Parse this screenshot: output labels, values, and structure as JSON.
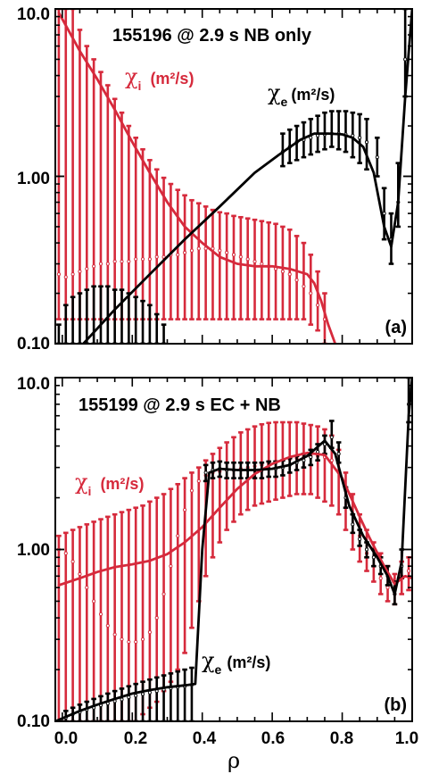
{
  "chart_data": [
    {
      "type": "line",
      "panel_label": "(a)",
      "title": "155196 @ 2.9 s NB only",
      "xlabel": "ρ",
      "xlim": [
        -0.02,
        1.0
      ],
      "ylim": [
        0.1,
        10.0
      ],
      "y_scale": "log",
      "y_ticks": [
        "0.10",
        "1.00",
        "10.0"
      ],
      "x_ticks": [
        "0.0",
        "0.2",
        "0.4",
        "0.6",
        "0.8",
        "1.0"
      ],
      "colors": {
        "chi_i": "#d62a3c",
        "chi_e": "#000000"
      },
      "series": [
        {
          "name_symbol": "χ",
          "name_sub": "i",
          "name_units": "(m²/s)",
          "color": "#d62a3c",
          "fit": {
            "x": [
              -0.01,
              0.05,
              0.1,
              0.15,
              0.2,
              0.25,
              0.3,
              0.35,
              0.4,
              0.45,
              0.5,
              0.55,
              0.6,
              0.65,
              0.7,
              0.72,
              0.74,
              0.76,
              0.78
            ],
            "y": [
              9.5,
              5.6,
              3.8,
              2.5,
              1.6,
              1.05,
              0.7,
              0.5,
              0.4,
              0.33,
              0.3,
              0.29,
              0.29,
              0.28,
              0.26,
              0.23,
              0.18,
              0.13,
              0.1
            ]
          },
          "errorbars": {
            "x": [
              -0.01,
              0.01,
              0.03,
              0.05,
              0.07,
              0.09,
              0.11,
              0.13,
              0.15,
              0.17,
              0.19,
              0.21,
              0.23,
              0.25,
              0.27,
              0.29,
              0.31,
              0.33,
              0.35,
              0.37,
              0.39,
              0.41,
              0.43,
              0.45,
              0.47,
              0.49,
              0.51,
              0.53,
              0.55,
              0.57,
              0.59,
              0.61,
              0.63,
              0.65,
              0.67,
              0.69,
              0.71,
              0.73,
              0.75
            ],
            "y": [
              0.26,
              0.25,
              0.26,
              0.27,
              0.28,
              0.29,
              0.3,
              0.3,
              0.31,
              0.31,
              0.31,
              0.32,
              0.32,
              0.32,
              0.33,
              0.33,
              0.34,
              0.34,
              0.35,
              0.36,
              0.37,
              0.37,
              0.37,
              0.36,
              0.35,
              0.34,
              0.33,
              0.32,
              0.31,
              0.3,
              0.29,
              0.28,
              0.27,
              0.26,
              0.24,
              0.22,
              0.2,
              0.17,
              0.14
            ],
            "lo": [
              0.14,
              0.14,
              0.14,
              0.14,
              0.14,
              0.14,
              0.14,
              0.14,
              0.14,
              0.14,
              0.14,
              0.14,
              0.14,
              0.14,
              0.14,
              0.14,
              0.14,
              0.14,
              0.14,
              0.14,
              0.14,
              0.14,
              0.14,
              0.14,
              0.14,
              0.14,
              0.14,
              0.14,
              0.14,
              0.14,
              0.14,
              0.14,
              0.14,
              0.14,
              0.14,
              0.14,
              0.13,
              0.12,
              0.1
            ],
            "hi": [
              10.0,
              10.0,
              10.0,
              7.5,
              6.0,
              5.0,
              4.2,
              3.5,
              2.9,
              2.4,
              2.0,
              1.7,
              1.45,
              1.25,
              1.1,
              0.98,
              0.9,
              0.83,
              0.77,
              0.72,
              0.69,
              0.66,
              0.63,
              0.61,
              0.6,
              0.58,
              0.57,
              0.56,
              0.55,
              0.54,
              0.53,
              0.52,
              0.5,
              0.48,
              0.44,
              0.4,
              0.34,
              0.27,
              0.2
            ]
          }
        },
        {
          "name_symbol": "χ",
          "name_sub": "e",
          "name_units": "(m²/s)",
          "color": "#000000",
          "fit": {
            "x": [
              0.06,
              0.15,
              0.25,
              0.35,
              0.45,
              0.55,
              0.62,
              0.68,
              0.72,
              0.76,
              0.8,
              0.83,
              0.86,
              0.89,
              0.92,
              0.94,
              0.96,
              0.98,
              1.0
            ],
            "y": [
              0.1,
              0.16,
              0.26,
              0.42,
              0.66,
              1.05,
              1.35,
              1.65,
              1.8,
              1.8,
              1.78,
              1.7,
              1.5,
              1.05,
              0.5,
              0.38,
              0.7,
              3.0,
              10.0
            ]
          },
          "errorbars": {
            "x": [
              -0.01,
              0.01,
              0.03,
              0.05,
              0.07,
              0.09,
              0.11,
              0.13,
              0.15,
              0.17,
              0.19,
              0.21,
              0.23,
              0.25,
              0.27,
              0.29,
              0.63,
              0.65,
              0.67,
              0.69,
              0.71,
              0.73,
              0.75,
              0.77,
              0.79,
              0.81,
              0.83,
              0.85,
              0.87,
              0.9,
              0.92,
              0.94,
              0.96,
              0.98
            ],
            "y": [
              0.1,
              0.1,
              0.1,
              0.1,
              0.1,
              0.1,
              0.1,
              0.1,
              0.1,
              0.1,
              0.1,
              0.1,
              0.1,
              0.1,
              0.1,
              0.1,
              1.4,
              1.5,
              1.6,
              1.65,
              1.7,
              1.75,
              1.78,
              1.8,
              1.8,
              1.78,
              1.75,
              1.7,
              1.6,
              1.3,
              0.6,
              0.42,
              0.7,
              5.0
            ],
            "lo": [
              0.1,
              0.1,
              0.1,
              0.1,
              0.1,
              0.1,
              0.1,
              0.1,
              0.1,
              0.1,
              0.1,
              0.1,
              0.1,
              0.1,
              0.1,
              0.1,
              1.15,
              1.2,
              1.25,
              1.3,
              1.35,
              1.4,
              1.45,
              1.5,
              1.45,
              1.4,
              1.3,
              1.2,
              1.1,
              1.0,
              0.42,
              0.3,
              0.5,
              3.0
            ],
            "hi": [
              0.13,
              0.17,
              0.19,
              0.2,
              0.21,
              0.22,
              0.22,
              0.22,
              0.21,
              0.21,
              0.2,
              0.19,
              0.18,
              0.17,
              0.15,
              0.13,
              1.8,
              1.9,
              2.0,
              2.1,
              2.2,
              2.3,
              2.4,
              2.45,
              2.45,
              2.45,
              2.4,
              2.35,
              2.2,
              1.7,
              0.85,
              0.6,
              1.2,
              10.0
            ]
          }
        }
      ]
    },
    {
      "type": "line",
      "panel_label": "(b)",
      "title": "155199 @ 2.9 s EC + NB",
      "xlabel": "ρ",
      "xlim": [
        -0.02,
        1.0
      ],
      "ylim": [
        0.1,
        10.0
      ],
      "y_scale": "log",
      "y_ticks": [
        "0.10",
        "1.00",
        "10.0"
      ],
      "x_ticks": [
        "0.0",
        "0.2",
        "0.4",
        "0.6",
        "0.8",
        "1.0"
      ],
      "colors": {
        "chi_i": "#d62a3c",
        "chi_e": "#000000"
      },
      "series": [
        {
          "name_symbol": "χ",
          "name_sub": "i",
          "name_units": "(m²/s)",
          "color": "#d62a3c",
          "fit": {
            "x": [
              -0.01,
              0.05,
              0.1,
              0.15,
              0.2,
              0.25,
              0.3,
              0.35,
              0.4,
              0.45,
              0.5,
              0.55,
              0.6,
              0.65,
              0.7,
              0.75,
              0.8,
              0.85,
              0.88,
              0.92,
              0.95,
              0.98,
              1.0
            ],
            "y": [
              0.62,
              0.68,
              0.74,
              0.79,
              0.82,
              0.86,
              0.94,
              1.1,
              1.35,
              1.75,
              2.25,
              2.75,
              3.15,
              3.45,
              3.65,
              3.55,
              2.6,
              1.55,
              1.15,
              0.8,
              0.63,
              0.7,
              0.68
            ]
          },
          "errorbars": {
            "x": [
              -0.01,
              0.01,
              0.03,
              0.05,
              0.07,
              0.09,
              0.11,
              0.13,
              0.15,
              0.17,
              0.19,
              0.21,
              0.23,
              0.25,
              0.27,
              0.29,
              0.31,
              0.33,
              0.35,
              0.37,
              0.39,
              0.41,
              0.43,
              0.45,
              0.47,
              0.49,
              0.51,
              0.53,
              0.55,
              0.57,
              0.59,
              0.61,
              0.63,
              0.65,
              0.67,
              0.69,
              0.71,
              0.73,
              0.75,
              0.77,
              0.79,
              0.81,
              0.83,
              0.85,
              0.87,
              0.89,
              0.91,
              0.93,
              0.95,
              0.97,
              0.99
            ],
            "y": [
              1.0,
              0.95,
              0.85,
              0.72,
              0.6,
              0.5,
              0.42,
              0.36,
              0.32,
              0.3,
              0.29,
              0.29,
              0.3,
              0.33,
              0.4,
              0.55,
              0.8,
              1.2,
              1.7,
              2.2,
              2.5,
              2.7,
              2.8,
              2.85,
              2.9,
              2.9,
              2.95,
              3.0,
              3.05,
              3.1,
              3.15,
              3.2,
              3.3,
              3.35,
              3.4,
              3.45,
              3.5,
              3.5,
              3.45,
              3.3,
              2.8,
              2.2,
              1.6,
              1.2,
              0.95,
              0.8,
              0.68,
              0.6,
              0.55,
              0.7,
              0.75
            ],
            "lo": [
              0.1,
              0.1,
              0.1,
              0.1,
              0.1,
              0.1,
              0.1,
              0.1,
              0.1,
              0.1,
              0.1,
              0.1,
              0.11,
              0.12,
              0.13,
              0.15,
              0.17,
              0.2,
              0.25,
              0.35,
              0.5,
              0.7,
              0.9,
              1.1,
              1.3,
              1.45,
              1.6,
              1.7,
              1.8,
              1.85,
              1.9,
              1.95,
              2.0,
              2.05,
              2.1,
              2.1,
              2.1,
              2.0,
              1.9,
              1.8,
              1.6,
              1.3,
              1.0,
              0.85,
              0.75,
              0.65,
              0.55,
              0.5,
              0.48,
              0.55,
              0.58
            ],
            "hi": [
              1.2,
              1.25,
              1.3,
              1.35,
              1.4,
              1.45,
              1.5,
              1.55,
              1.6,
              1.65,
              1.7,
              1.75,
              1.8,
              1.9,
              2.0,
              2.1,
              2.25,
              2.4,
              2.6,
              2.8,
              3.0,
              3.3,
              3.6,
              3.9,
              4.2,
              4.5,
              4.8,
              5.0,
              5.2,
              5.35,
              5.45,
              5.5,
              5.5,
              5.5,
              5.5,
              5.4,
              5.3,
              5.2,
              5.0,
              4.6,
              3.8,
              2.8,
              2.1,
              1.6,
              1.3,
              1.1,
              0.95,
              0.8,
              0.72,
              0.85,
              0.9
            ]
          }
        },
        {
          "name_symbol": "χ",
          "name_sub": "e",
          "name_units": "(m²/s)",
          "color": "#000000",
          "fit": {
            "x": [
              -0.02,
              0.05,
              0.1,
              0.15,
              0.2,
              0.25,
              0.3,
              0.35,
              0.38,
              0.4,
              0.42,
              0.45,
              0.5,
              0.55,
              0.6,
              0.65,
              0.7,
              0.75,
              0.78,
              0.82,
              0.86,
              0.9,
              0.93,
              0.95,
              0.97,
              0.99,
              1.0
            ],
            "y": [
              0.1,
              0.115,
              0.125,
              0.135,
              0.145,
              0.152,
              0.158,
              0.162,
              0.165,
              1.0,
              2.8,
              2.95,
              2.9,
              2.9,
              2.95,
              3.1,
              3.5,
              4.3,
              3.6,
              1.8,
              1.2,
              0.9,
              0.7,
              0.55,
              0.85,
              6.0,
              10.0
            ]
          },
          "errorbars": {
            "x": [
              0.01,
              0.03,
              0.05,
              0.07,
              0.09,
              0.11,
              0.13,
              0.15,
              0.17,
              0.19,
              0.21,
              0.23,
              0.25,
              0.27,
              0.29,
              0.31,
              0.33,
              0.35,
              0.37,
              0.41,
              0.43,
              0.45,
              0.47,
              0.49,
              0.51,
              0.53,
              0.55,
              0.57,
              0.59,
              0.61,
              0.63,
              0.65,
              0.67,
              0.69,
              0.71,
              0.73,
              0.75,
              0.77,
              0.79,
              0.81,
              0.83,
              0.85,
              0.87,
              0.89,
              0.91,
              0.93,
              0.95,
              0.97,
              0.99
            ],
            "y": [
              0.105,
              0.11,
              0.113,
              0.117,
              0.12,
              0.124,
              0.127,
              0.131,
              0.134,
              0.138,
              0.141,
              0.144,
              0.147,
              0.15,
              0.153,
              0.156,
              0.158,
              0.16,
              0.163,
              2.8,
              2.9,
              2.95,
              2.9,
              2.9,
              2.9,
              2.9,
              2.9,
              2.9,
              2.95,
              2.95,
              3.0,
              3.1,
              3.2,
              3.3,
              3.45,
              3.7,
              4.1,
              4.5,
              3.6,
              2.0,
              1.4,
              1.15,
              1.0,
              0.9,
              0.8,
              0.7,
              0.55,
              0.8,
              7.0
            ],
            "lo": [
              0.1,
              0.1,
              0.1,
              0.1,
              0.1,
              0.1,
              0.1,
              0.1,
              0.1,
              0.1,
              0.1,
              0.1,
              0.1,
              0.1,
              0.1,
              0.1,
              0.1,
              0.1,
              0.1,
              2.5,
              2.6,
              2.65,
              2.6,
              2.6,
              2.6,
              2.6,
              2.6,
              2.6,
              2.65,
              2.65,
              2.7,
              2.8,
              2.9,
              3.0,
              3.1,
              3.3,
              3.6,
              3.9,
              3.2,
              1.75,
              1.25,
              1.05,
              0.9,
              0.8,
              0.72,
              0.62,
              0.48,
              0.68,
              5.5
            ],
            "hi": [
              0.115,
              0.12,
              0.125,
              0.13,
              0.135,
              0.14,
              0.145,
              0.15,
              0.155,
              0.16,
              0.165,
              0.17,
              0.175,
              0.18,
              0.185,
              0.19,
              0.195,
              0.2,
              0.205,
              3.1,
              3.2,
              3.25,
              3.2,
              3.2,
              3.2,
              3.2,
              3.2,
              3.2,
              3.25,
              3.25,
              3.3,
              3.4,
              3.5,
              3.6,
              3.8,
              4.1,
              4.6,
              5.6,
              4.2,
              2.3,
              1.6,
              1.3,
              1.1,
              1.0,
              0.9,
              0.8,
              0.65,
              1.0,
              10.0
            ]
          }
        }
      ]
    }
  ]
}
